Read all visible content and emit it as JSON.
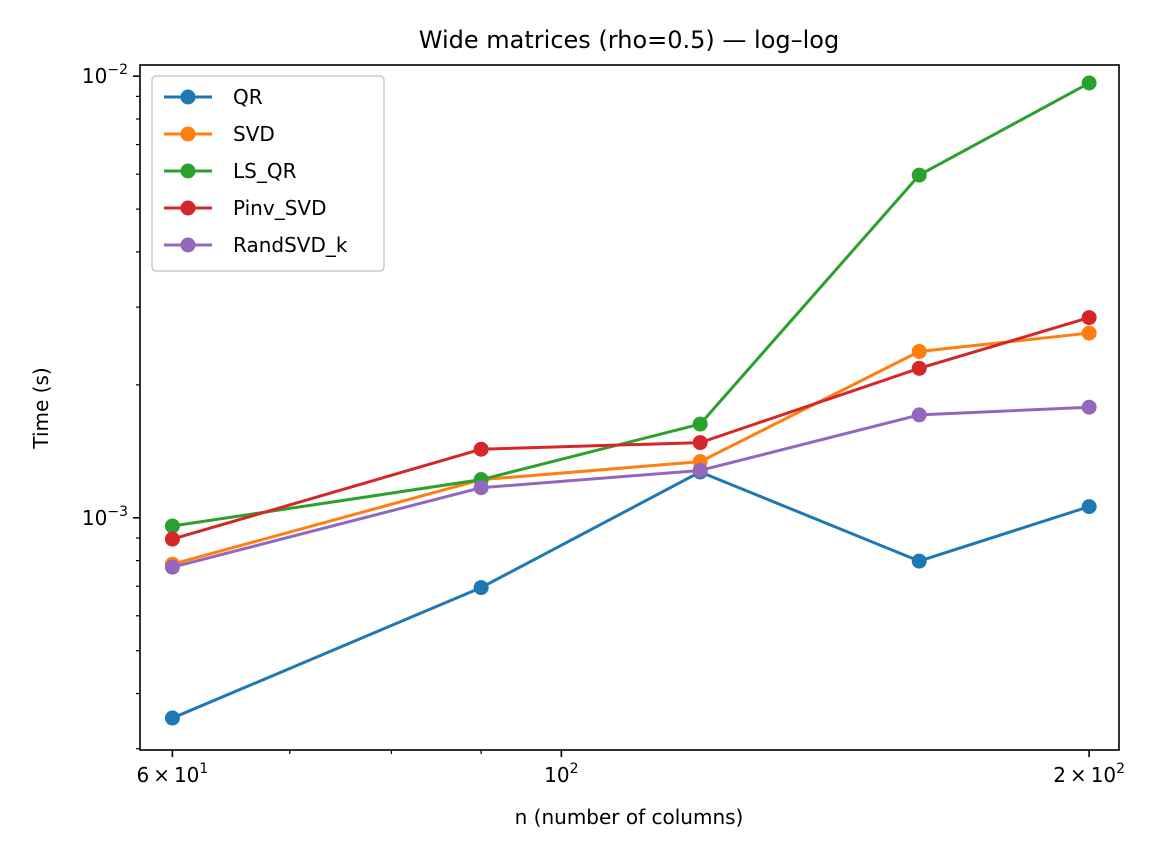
{
  "chart_data": {
    "type": "line",
    "title": "Wide matrices (rho=0.5) — log–log",
    "xlabel": "n (number of columns)",
    "ylabel": "Time (s)",
    "xscale": "log",
    "yscale": "log",
    "xlim": [
      57.5,
      208
    ],
    "ylim": [
      0.000298,
      0.0106
    ],
    "grid": false,
    "legend_position": "upper-left",
    "x": [
      60,
      90,
      120,
      160,
      200
    ],
    "x_ticks": [
      {
        "value": 60,
        "base": "6",
        "mult": "×",
        "ten": "10",
        "exp": "1"
      },
      {
        "value": 100,
        "base": "",
        "mult": "",
        "ten": "10",
        "exp": "2"
      },
      {
        "value": 200,
        "base": "2",
        "mult": "×",
        "ten": "10",
        "exp": "2"
      }
    ],
    "y_ticks": [
      {
        "value": 0.001,
        "ten": "10",
        "exp": "−3"
      },
      {
        "value": 0.01,
        "ten": "10",
        "exp": "−2"
      }
    ],
    "x_minor_ticks": [
      70,
      80,
      90,
      300
    ],
    "y_minor_ticks": [
      0.0003,
      0.0004,
      0.0005,
      0.0006,
      0.0007,
      0.0008,
      0.0009,
      0.002,
      0.003,
      0.004,
      0.005,
      0.006,
      0.007,
      0.008,
      0.009
    ],
    "series": [
      {
        "name": "QR",
        "color": "#1f77b4",
        "values": [
          0.000352,
          0.000695,
          0.00127,
          0.000798,
          0.00106
        ]
      },
      {
        "name": "SVD",
        "color": "#ff7f0e",
        "values": [
          0.000785,
          0.00122,
          0.00134,
          0.00238,
          0.00262
        ]
      },
      {
        "name": "LS_QR",
        "color": "#2ca02c",
        "values": [
          0.000958,
          0.00122,
          0.00163,
          0.00597,
          0.00965
        ]
      },
      {
        "name": "Pinv_SVD",
        "color": "#d62728",
        "values": [
          0.000895,
          0.00143,
          0.00148,
          0.00218,
          0.00284
        ]
      },
      {
        "name": "RandSVD_k",
        "color": "#9467bd",
        "values": [
          0.000773,
          0.00117,
          0.00128,
          0.00171,
          0.00178
        ]
      }
    ]
  }
}
